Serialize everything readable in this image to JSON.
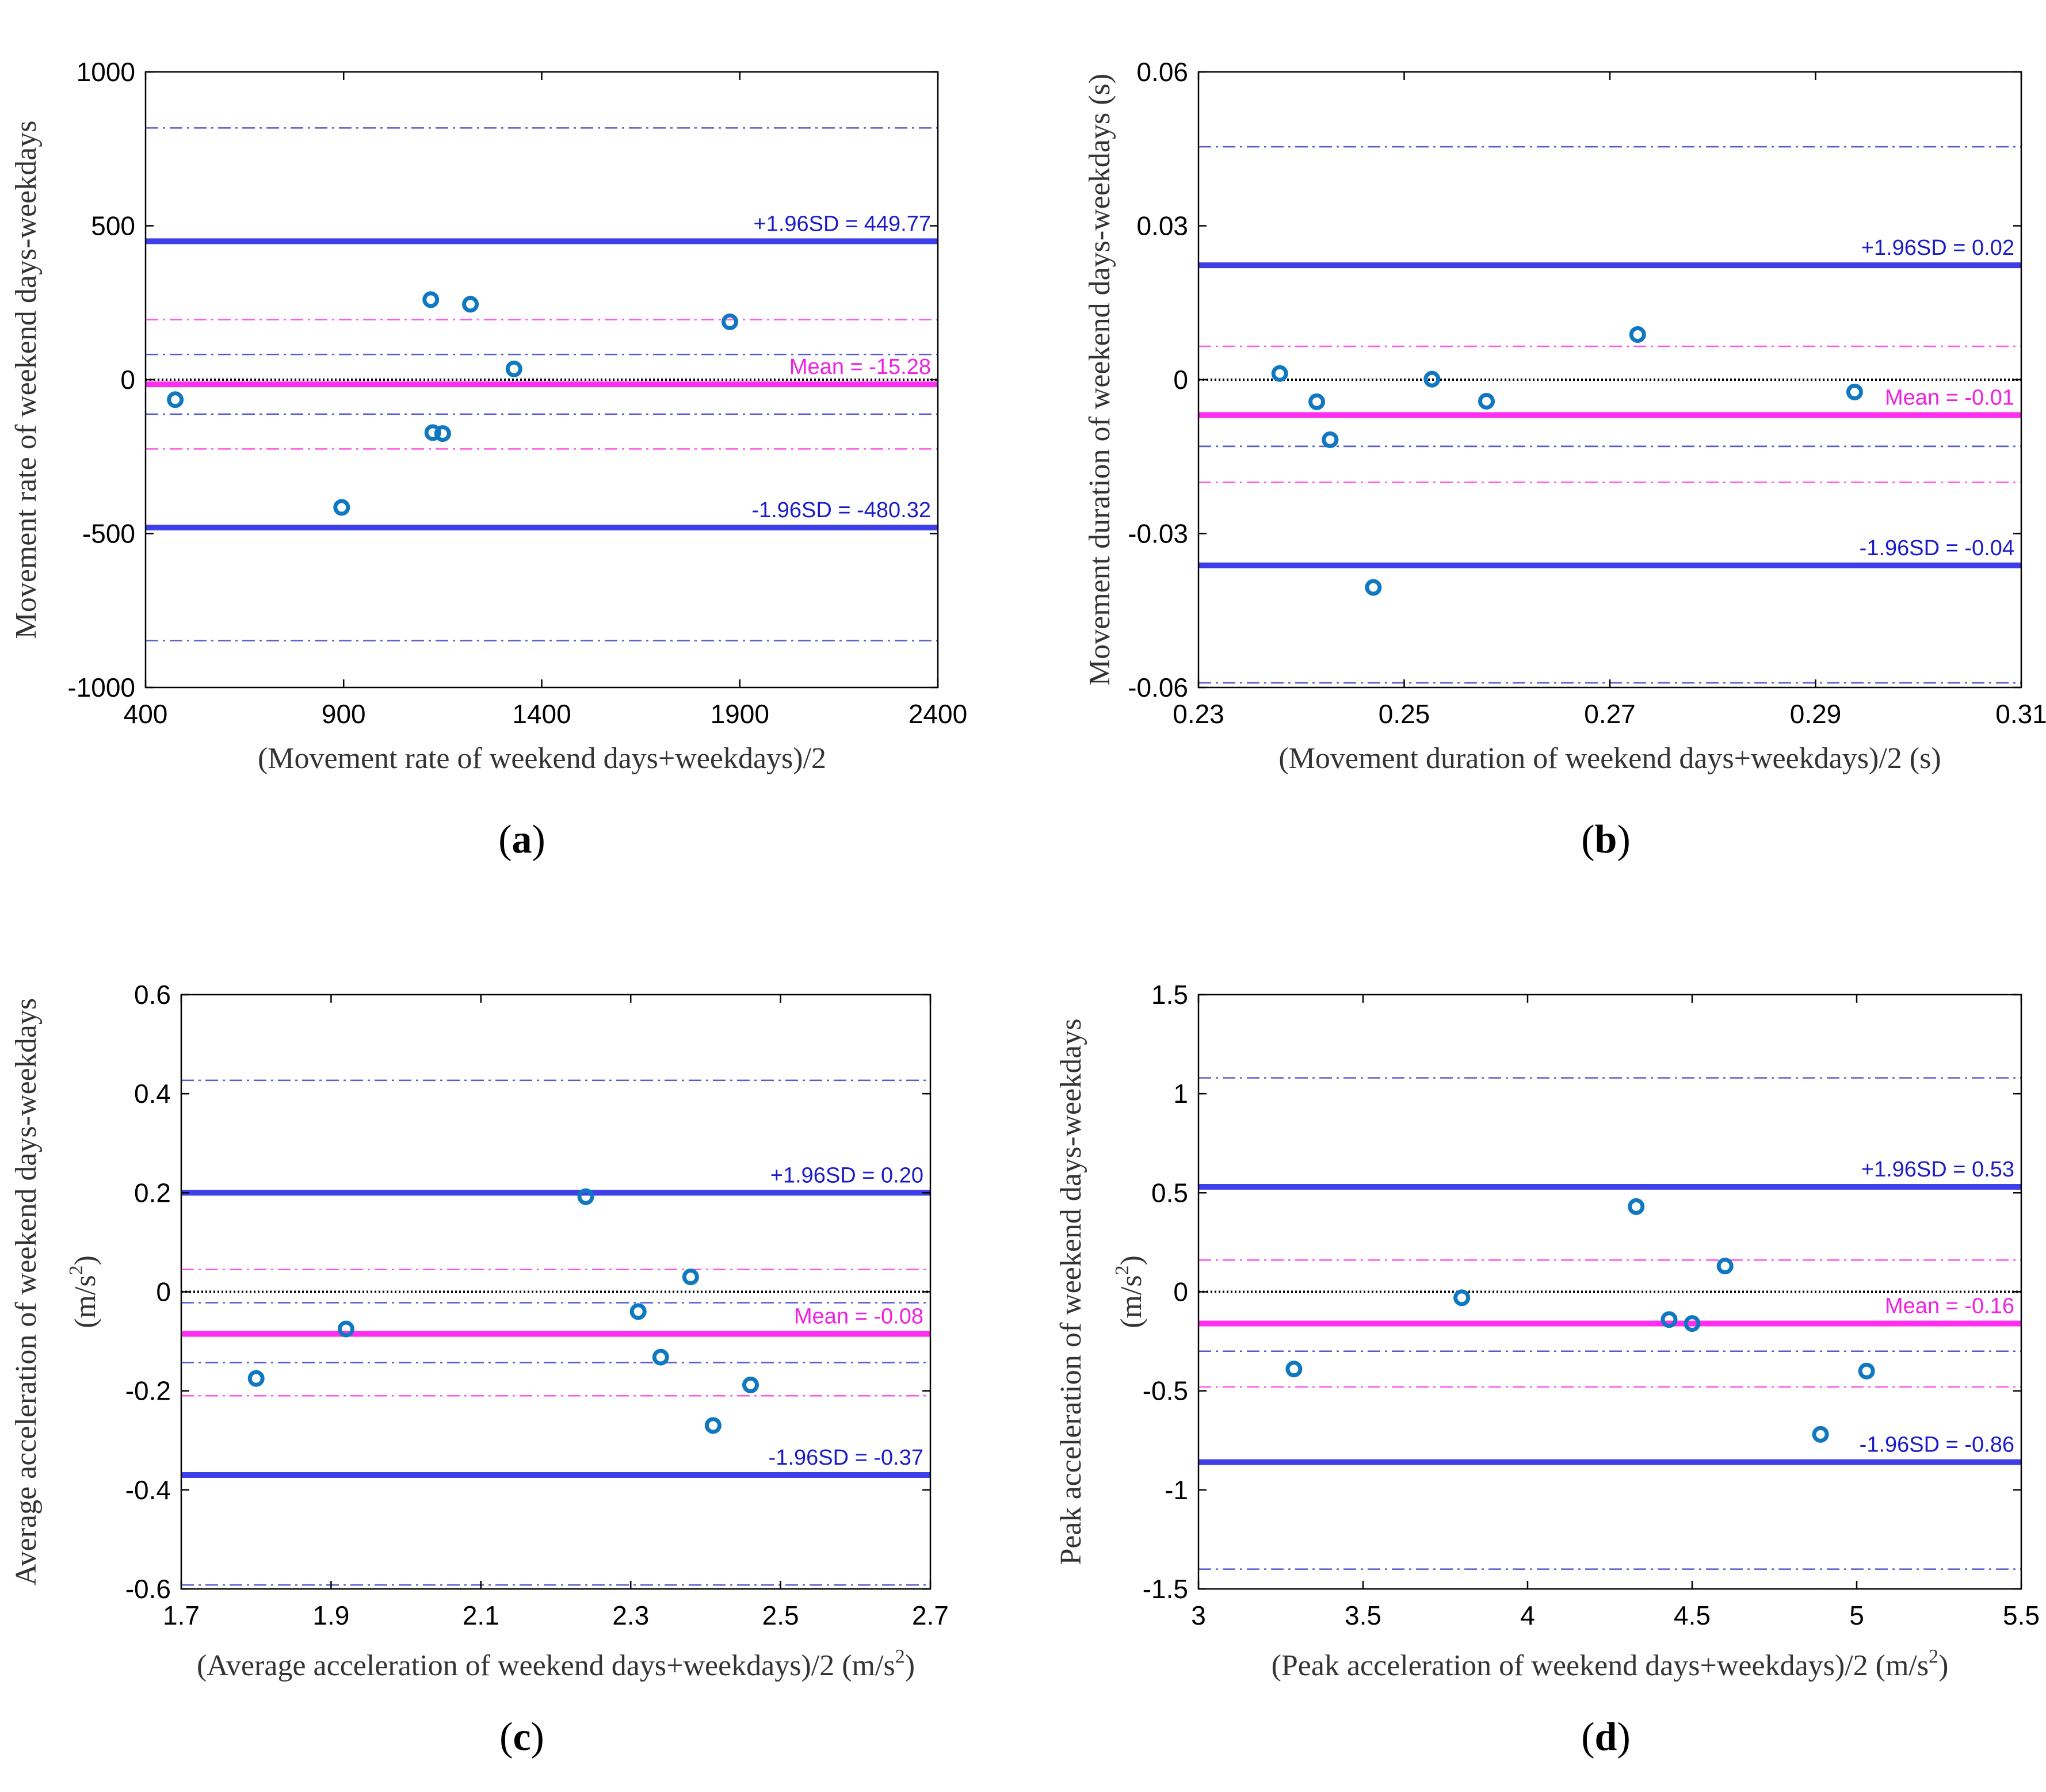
{
  "colors": {
    "limit": "#3f3fe8",
    "limit_text": "#1b1bc8",
    "mean": "#ff2ef0",
    "mean_text": "#f020e0",
    "ci_limit": "#5a5ad0",
    "ci_mean": "#ff55e8",
    "zero": "#000000",
    "marker": "#0f78c0"
  },
  "chart_data": [
    {
      "type": "scatter",
      "panel_label": "a",
      "xlabel": "(Movement rate of weekend days+weekdays)/2",
      "xlabel_sup": "",
      "xlabel_tail": "",
      "ylabel": "Movement rate of weekend days-weekdays",
      "ylabel_line2": "",
      "ylabel_line2_sup": "",
      "ylabel_line2_tail": "",
      "xlim": [
        400,
        2400
      ],
      "ylim": [
        -1000,
        1000
      ],
      "xticks": [
        400,
        900,
        1400,
        1900,
        2400
      ],
      "yticks": [
        1000,
        500,
        0,
        -500,
        -1000
      ],
      "xtick_labels": [
        "400",
        "900",
        "1400",
        "1900",
        "2400"
      ],
      "ytick_labels": [
        "1000",
        "500",
        "0",
        "-500",
        "-1000"
      ],
      "points": [
        {
          "x": 475,
          "y": -65
        },
        {
          "x": 895,
          "y": -415
        },
        {
          "x": 1120,
          "y": 260
        },
        {
          "x": 1125,
          "y": -172
        },
        {
          "x": 1150,
          "y": -175
        },
        {
          "x": 1220,
          "y": 245
        },
        {
          "x": 1330,
          "y": 35
        },
        {
          "x": 1875,
          "y": 188
        }
      ],
      "upper_loa": 449.77,
      "lower_loa": -480.32,
      "mean": -15.28,
      "upper_loa_ci": [
        82,
        818
      ],
      "lower_loa_ci": [
        -848,
        -112
      ],
      "mean_ci": [
        -225,
        195
      ],
      "upper_label": "+1.96SD = 449.77",
      "lower_label": "-1.96SD = -480.32",
      "mean_label": "Mean = -15.28"
    },
    {
      "type": "scatter",
      "panel_label": "b",
      "xlabel": "(Movement duration of weekend days+weekdays)/2 (s)",
      "xlabel_sup": "",
      "xlabel_tail": "",
      "ylabel": "Movement duration of weekend days-weekdays (s)",
      "ylabel_line2": "",
      "ylabel_line2_sup": "",
      "ylabel_line2_tail": "",
      "xlim": [
        0.23,
        0.31
      ],
      "ylim": [
        -0.06,
        0.06
      ],
      "xticks": [
        0.23,
        0.25,
        0.27,
        0.29,
        0.31
      ],
      "yticks": [
        0.06,
        0.03,
        0,
        -0.03,
        -0.06
      ],
      "xtick_labels": [
        "0.23",
        "0.25",
        "0.27",
        "0.29",
        "0.31"
      ],
      "ytick_labels": [
        "0.06",
        "0.03",
        "0",
        "-0.03",
        "-0.06"
      ],
      "points": [
        {
          "x": 0.2379,
          "y": 0.0012
        },
        {
          "x": 0.2415,
          "y": -0.0043
        },
        {
          "x": 0.2428,
          "y": -0.0117
        },
        {
          "x": 0.247,
          "y": -0.0405
        },
        {
          "x": 0.2527,
          "y": 0.0001
        },
        {
          "x": 0.258,
          "y": -0.0042
        },
        {
          "x": 0.2727,
          "y": 0.0088
        },
        {
          "x": 0.2938,
          "y": -0.0024
        }
      ],
      "upper_loa": 0.0223,
      "lower_loa": -0.0362,
      "mean": -0.0069,
      "upper_loa_ci": [
        -0.013,
        0.0454
      ],
      "lower_loa_ci": [
        -0.0591,
        -0.013
      ],
      "mean_ci": [
        -0.02,
        0.0065
      ],
      "upper_label": "+1.96SD = 0.02",
      "lower_label": "-1.96SD = -0.04",
      "mean_label": "Mean = -0.01"
    },
    {
      "type": "scatter",
      "panel_label": "c",
      "xlabel": "(Average acceleration of weekend days+weekdays)/2 (m/s",
      "xlabel_sup": "2",
      "xlabel_tail": ")",
      "ylabel": "Average acceleration of weekend days-weekdays",
      "ylabel_line2": "(m/s",
      "ylabel_line2_sup": "2",
      "ylabel_line2_tail": ")",
      "xlim": [
        1.7,
        2.7
      ],
      "ylim": [
        -0.6,
        0.6
      ],
      "xticks": [
        1.7,
        1.9,
        2.1,
        2.3,
        2.5,
        2.7
      ],
      "yticks": [
        0.6,
        0.4,
        0.2,
        0,
        -0.2,
        -0.4,
        -0.6
      ],
      "xtick_labels": [
        "1.7",
        "1.9",
        "2.1",
        "2.3",
        "2.5",
        "2.7"
      ],
      "ytick_labels": [
        "0.6",
        "0.4",
        "0.2",
        "0",
        "-0.2",
        "-0.4",
        "-0.6"
      ],
      "points": [
        {
          "x": 1.8,
          "y": -0.175
        },
        {
          "x": 1.92,
          "y": -0.075
        },
        {
          "x": 2.24,
          "y": 0.192
        },
        {
          "x": 2.31,
          "y": -0.04
        },
        {
          "x": 2.34,
          "y": -0.132
        },
        {
          "x": 2.38,
          "y": 0.03
        },
        {
          "x": 2.41,
          "y": -0.27
        },
        {
          "x": 2.46,
          "y": -0.188
        }
      ],
      "upper_loa": 0.2,
      "lower_loa": -0.37,
      "mean": -0.085,
      "upper_loa_ci": [
        -0.022,
        0.427
      ],
      "lower_loa_ci": [
        -0.592,
        -0.143
      ],
      "mean_ci": [
        -0.21,
        0.045
      ],
      "upper_label": "+1.96SD = 0.20",
      "lower_label": "-1.96SD = -0.37",
      "mean_label": "Mean = -0.08"
    },
    {
      "type": "scatter",
      "panel_label": "d",
      "xlabel": "(Peak acceleration of weekend days+weekdays)/2 (m/s",
      "xlabel_sup": "2",
      "xlabel_tail": ")",
      "ylabel": "Peak acceleration of weekend days-weekdays",
      "ylabel_line2": "(m/s",
      "ylabel_line2_sup": "2",
      "ylabel_line2_tail": ")",
      "xlim": [
        3,
        5.5
      ],
      "ylim": [
        -1.5,
        1.5
      ],
      "xticks": [
        3,
        3.5,
        4,
        4.5,
        5,
        5.5
      ],
      "yticks": [
        1.5,
        1,
        0.5,
        0,
        -0.5,
        -1,
        -1.5
      ],
      "xtick_labels": [
        "3",
        "3.5",
        "4",
        "4.5",
        "5",
        "5.5"
      ],
      "ytick_labels": [
        "1.5",
        "1",
        "0.5",
        "0",
        "-0.5",
        "-1",
        "-1.5"
      ],
      "points": [
        {
          "x": 3.29,
          "y": -0.39
        },
        {
          "x": 3.8,
          "y": -0.03
        },
        {
          "x": 4.33,
          "y": 0.43
        },
        {
          "x": 4.43,
          "y": -0.14
        },
        {
          "x": 4.5,
          "y": -0.16
        },
        {
          "x": 4.6,
          "y": 0.13
        },
        {
          "x": 4.89,
          "y": -0.72
        },
        {
          "x": 5.03,
          "y": -0.4
        }
      ],
      "upper_loa": 0.53,
      "lower_loa": -0.86,
      "mean": -0.16,
      "upper_loa_ci": [
        -0.3,
        1.08
      ],
      "lower_loa_ci": [
        -1.4,
        -0.48
      ],
      "mean_ci": [
        -0.48,
        0.16
      ],
      "upper_label": "+1.96SD = 0.53",
      "lower_label": "-1.96SD = -0.86",
      "mean_label": "Mean = -0.16"
    }
  ]
}
